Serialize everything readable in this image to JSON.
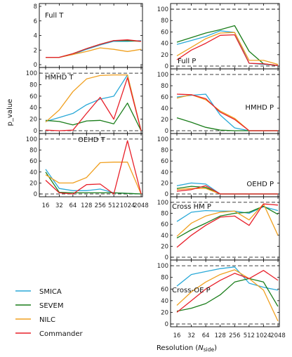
{
  "chart_data": [
    {
      "id": "full_t",
      "type": "line",
      "title": "Full T",
      "ylim": [
        0,
        8
      ],
      "yticks": [
        0,
        2,
        4,
        6,
        8
      ],
      "x": [
        "16",
        "32",
        "64",
        "128",
        "256",
        "512",
        "1024",
        "2048"
      ],
      "series": [
        {
          "name": "SMICA",
          "values": [
            1.0,
            1.0,
            1.4,
            2.1,
            2.7,
            3.2,
            3.2,
            3.3
          ]
        },
        {
          "name": "SEVEM",
          "values": [
            1.0,
            1.0,
            1.5,
            2.2,
            2.8,
            3.3,
            3.3,
            3.2
          ]
        },
        {
          "name": "NILC",
          "values": [
            1.0,
            1.0,
            1.4,
            1.8,
            2.3,
            2.1,
            1.8,
            2.1
          ]
        },
        {
          "name": "Commander",
          "values": [
            1.0,
            1.0,
            1.5,
            2.2,
            2.8,
            3.3,
            3.4,
            3.2
          ]
        }
      ]
    },
    {
      "id": "hmhd_t",
      "type": "line",
      "title": "HMHD T",
      "ylim": [
        0,
        105
      ],
      "yticks": [
        0,
        20,
        40,
        60,
        80,
        100
      ],
      "hlines": [
        0,
        100
      ],
      "x": [
        "16",
        "32",
        "64",
        "128",
        "256",
        "512",
        "1024",
        "2048"
      ],
      "series": [
        {
          "name": "SMICA",
          "values": [
            16,
            23,
            30,
            45,
            55,
            60,
            97,
            0
          ]
        },
        {
          "name": "SEVEM",
          "values": [
            18,
            16,
            10,
            17,
            18,
            12,
            48,
            0
          ]
        },
        {
          "name": "NILC",
          "values": [
            15,
            36,
            68,
            90,
            96,
            97,
            97,
            0
          ]
        },
        {
          "name": "Commander",
          "values": [
            1,
            0,
            1,
            30,
            58,
            20,
            92,
            0
          ]
        }
      ]
    },
    {
      "id": "oehd_t",
      "type": "line",
      "title": "OEHD T",
      "ylim": [
        0,
        105
      ],
      "yticks": [
        0,
        20,
        40,
        60,
        80,
        100
      ],
      "hlines": [
        0,
        100
      ],
      "x": [
        "16",
        "32",
        "64",
        "128",
        "256",
        "512",
        "1024",
        "2048"
      ],
      "series": [
        {
          "name": "SMICA",
          "values": [
            45,
            10,
            6,
            6,
            9,
            2,
            1,
            0
          ]
        },
        {
          "name": "SEVEM",
          "values": [
            40,
            3,
            2,
            2,
            2,
            2,
            1,
            0
          ]
        },
        {
          "name": "NILC",
          "values": [
            35,
            20,
            20,
            30,
            57,
            58,
            58,
            0
          ]
        },
        {
          "name": "Commander",
          "values": [
            25,
            2,
            0,
            17,
            18,
            0,
            97,
            0
          ]
        }
      ]
    },
    {
      "id": "full_p",
      "type": "line",
      "title": "Full P",
      "ylim": [
        0,
        105
      ],
      "yticks": [
        0,
        20,
        40,
        60,
        80,
        100
      ],
      "hlines": [
        0,
        100
      ],
      "x": [
        "16",
        "32",
        "64",
        "128",
        "256",
        "512",
        "1024",
        "2048"
      ],
      "series": [
        {
          "name": "SMICA",
          "values": [
            38,
            45,
            52,
            62,
            59,
            5,
            3,
            1
          ]
        },
        {
          "name": "SEVEM",
          "values": [
            42,
            50,
            58,
            64,
            71,
            26,
            4,
            1
          ]
        },
        {
          "name": "NILC",
          "values": [
            18,
            33,
            48,
            58,
            59,
            10,
            10,
            3
          ]
        },
        {
          "name": "Commander",
          "values": [
            11,
            28,
            40,
            54,
            55,
            5,
            4,
            1
          ]
        }
      ]
    },
    {
      "id": "hmhd_p",
      "type": "line",
      "title": "HMHD P",
      "ylim": [
        0,
        105
      ],
      "yticks": [
        0,
        20,
        40,
        60,
        80,
        100
      ],
      "hlines": [
        0,
        100
      ],
      "x": [
        "16",
        "32",
        "64",
        "128",
        "256",
        "512",
        "1024",
        "2048"
      ],
      "series": [
        {
          "name": "SMICA",
          "values": [
            60,
            63,
            65,
            28,
            5,
            0,
            0,
            0
          ]
        },
        {
          "name": "SEVEM",
          "values": [
            23,
            15,
            6,
            1,
            0,
            0,
            0,
            0
          ]
        },
        {
          "name": "NILC",
          "values": [
            58,
            64,
            55,
            35,
            22,
            0,
            0,
            0
          ]
        },
        {
          "name": "Commander",
          "values": [
            65,
            64,
            57,
            33,
            20,
            0,
            0,
            0
          ]
        }
      ]
    },
    {
      "id": "oehd_p",
      "type": "line",
      "title": "OEHD P",
      "ylim": [
        0,
        105
      ],
      "yticks": [
        0,
        20,
        40,
        60,
        80,
        100
      ],
      "hlines": [
        0,
        100
      ],
      "x": [
        "16",
        "32",
        "64",
        "128",
        "256",
        "512",
        "1024",
        "2048"
      ],
      "series": [
        {
          "name": "SMICA",
          "values": [
            15,
            20,
            18,
            0,
            0,
            0,
            0,
            0
          ]
        },
        {
          "name": "SEVEM",
          "values": [
            10,
            14,
            12,
            0,
            0,
            0,
            0,
            0
          ]
        },
        {
          "name": "NILC",
          "values": [
            8,
            10,
            10,
            0,
            0,
            0,
            0,
            0
          ]
        },
        {
          "name": "Commander",
          "values": [
            5,
            8,
            15,
            0,
            0,
            0,
            0,
            0
          ]
        }
      ]
    },
    {
      "id": "cross_hm_p",
      "type": "line",
      "title": "Cross HM P",
      "ylim": [
        0,
        105
      ],
      "yticks": [
        0,
        20,
        40,
        60,
        80,
        100
      ],
      "hlines": [
        0,
        100
      ],
      "x": [
        "16",
        "32",
        "64",
        "128",
        "256",
        "512",
        "1024",
        "2048"
      ],
      "series": [
        {
          "name": "SMICA",
          "values": [
            65,
            82,
            85,
            84,
            84,
            80,
            92,
            85
          ]
        },
        {
          "name": "SEVEM",
          "values": [
            35,
            50,
            62,
            75,
            80,
            82,
            93,
            78
          ]
        },
        {
          "name": "NILC",
          "values": [
            38,
            62,
            75,
            82,
            84,
            68,
            97,
            40
          ]
        },
        {
          "name": "Commander",
          "values": [
            18,
            40,
            58,
            73,
            75,
            58,
            97,
            95
          ]
        }
      ]
    },
    {
      "id": "cross_oe_p",
      "type": "line",
      "title": "Cross-OE P",
      "ylim": [
        0,
        105
      ],
      "yticks": [
        0,
        20,
        40,
        60,
        80,
        100
      ],
      "hlines": [
        0,
        100
      ],
      "x": [
        "16",
        "32",
        "64",
        "128",
        "256",
        "512",
        "1024",
        "2048"
      ],
      "series": [
        {
          "name": "SMICA",
          "values": [
            65,
            85,
            90,
            95,
            98,
            70,
            63,
            58
          ]
        },
        {
          "name": "SEVEM",
          "values": [
            22,
            27,
            35,
            50,
            72,
            78,
            72,
            30
          ]
        },
        {
          "name": "NILC",
          "values": [
            32,
            55,
            72,
            85,
            93,
            78,
            58,
            5
          ]
        },
        {
          "name": "Commander",
          "values": [
            20,
            40,
            60,
            75,
            87,
            78,
            92,
            75
          ]
        }
      ]
    }
  ],
  "labels": {
    "ylabel": "p_value",
    "xlabel": "Resolution (",
    "xlabel_sub": "side",
    "xlabel_n": "N",
    "xlabel_end": ")"
  },
  "legend": [
    {
      "name": "SMICA",
      "color": "#2aa9d8"
    },
    {
      "name": "SEVEM",
      "color": "#1a7d1a"
    },
    {
      "name": "NILC",
      "color": "#f0a020"
    },
    {
      "name": "Commander",
      "color": "#e8202a"
    }
  ]
}
